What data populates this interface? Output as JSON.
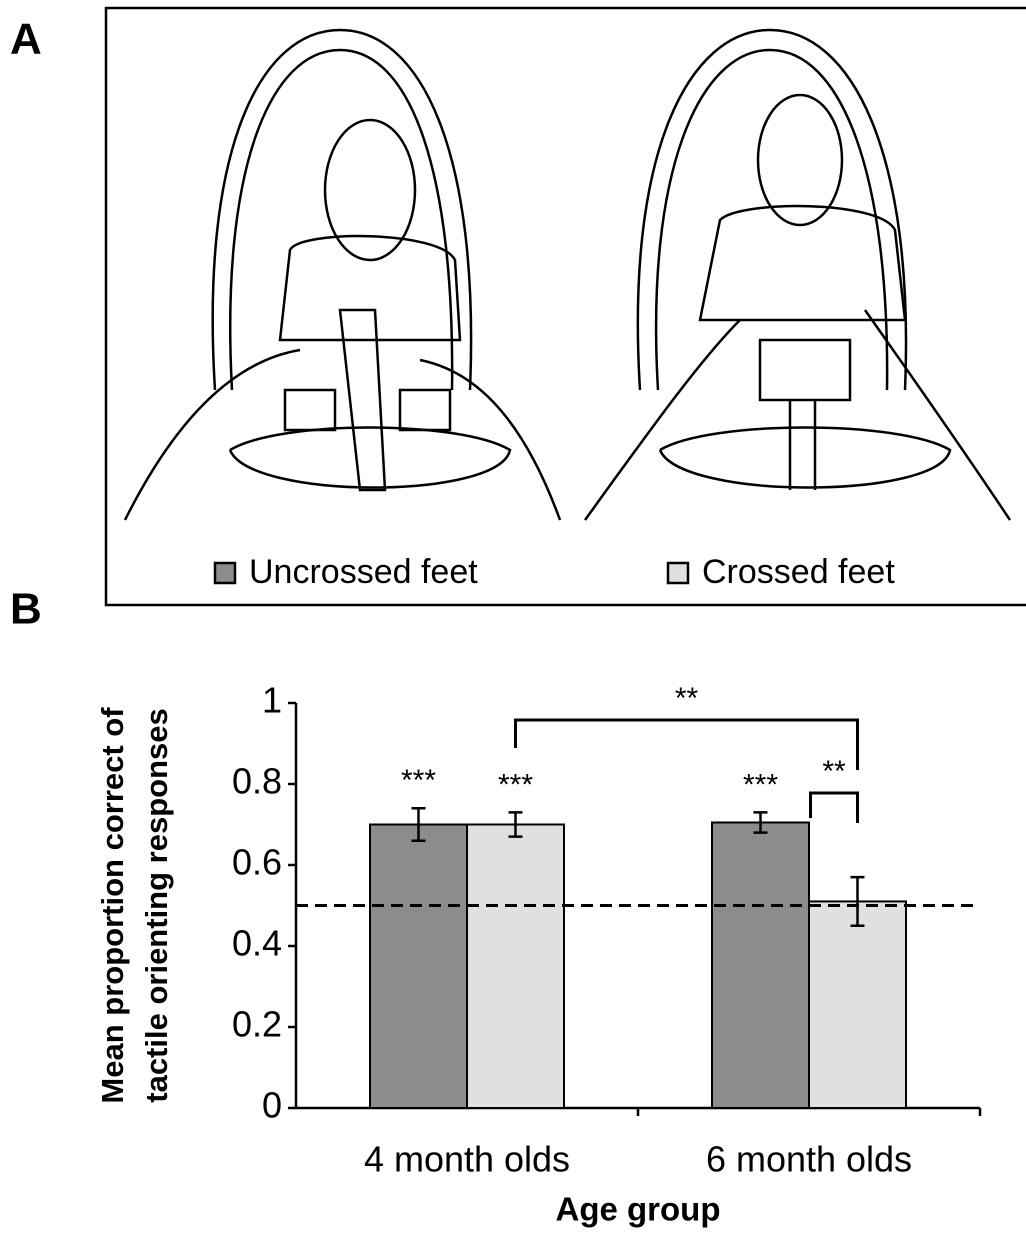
{
  "panel_a": {
    "label": "A"
  },
  "panel_b": {
    "label": "B"
  },
  "chart_data": {
    "type": "bar",
    "categories": [
      "4 month olds",
      "6 month olds"
    ],
    "series": [
      {
        "name": "Uncrossed feet",
        "color": "#8c8c8c",
        "values": [
          0.7,
          0.705
        ],
        "errors": [
          0.04,
          0.025
        ],
        "value_labels": [
          "***",
          "***"
        ]
      },
      {
        "name": "Crossed feet",
        "color": "#e0e0e0",
        "values": [
          0.7,
          0.51
        ],
        "errors": [
          0.03,
          0.06
        ],
        "value_labels": [
          "***",
          null
        ]
      }
    ],
    "significance_brackets": [
      "**",
      "**"
    ],
    "reference_line": 0.5,
    "ylim": [
      0,
      1
    ],
    "yticks": [
      0,
      0.2,
      0.4,
      0.6,
      0.8,
      1
    ],
    "ylabel": [
      "Mean proportion correct of",
      "tactile orienting responses"
    ],
    "xlabel": "Age group"
  }
}
